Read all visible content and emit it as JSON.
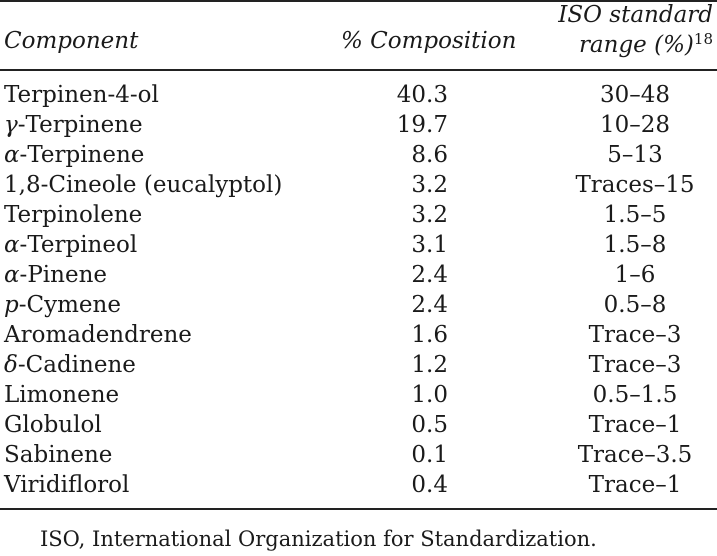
{
  "table": {
    "headers": {
      "component": "Component",
      "composition": "% Composition",
      "iso_line1": "ISO standard",
      "iso_line2": "range (%)",
      "iso_ref": "18"
    },
    "rows": [
      {
        "component": "Terpinen-4-ol",
        "composition": "40.3",
        "iso_range": "30–48"
      },
      {
        "component": "γ-Terpinene",
        "composition": "19.7",
        "iso_range": "10–28"
      },
      {
        "component": "α-Terpinene",
        "composition": "8.6",
        "iso_range": "5–13"
      },
      {
        "component": "1,8-Cineole (eucalyptol)",
        "composition": "3.2",
        "iso_range": "Traces–15"
      },
      {
        "component": "Terpinolene",
        "composition": "3.2",
        "iso_range": "1.5–5"
      },
      {
        "component": "α-Terpineol",
        "composition": "3.1",
        "iso_range": "1.5–8"
      },
      {
        "component": "α-Pinene",
        "composition": "2.4",
        "iso_range": "1–6"
      },
      {
        "component": "p-Cymene",
        "composition": "2.4",
        "iso_range": "0.5–8"
      },
      {
        "component": "Aromadendrene",
        "composition": "1.6",
        "iso_range": "Trace–3"
      },
      {
        "component": "δ-Cadinene",
        "composition": "1.2",
        "iso_range": "Trace–3"
      },
      {
        "component": "Limonene",
        "composition": "1.0",
        "iso_range": "0.5–1.5"
      },
      {
        "component": "Globulol",
        "composition": "0.5",
        "iso_range": "Trace–1"
      },
      {
        "component": "Sabinene",
        "composition": "0.1",
        "iso_range": "Trace–3.5"
      },
      {
        "component": "Viridiflorol",
        "composition": "0.4",
        "iso_range": "Trace–1"
      }
    ]
  },
  "footnote": "ISO, International Organization for Standardization."
}
